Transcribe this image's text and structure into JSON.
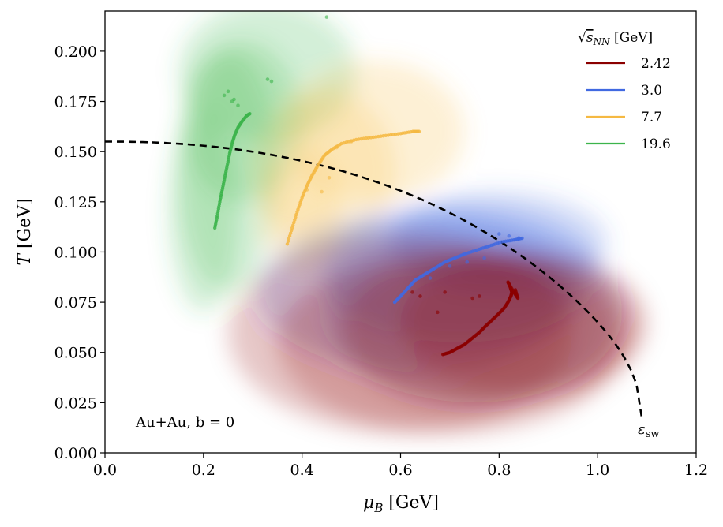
{
  "chart_data": {
    "type": "scatter",
    "xlabel": "μ_B [GeV]",
    "ylabel": "T [GeV]",
    "xlim": [
      0.0,
      1.2
    ],
    "ylim": [
      0.0,
      0.22
    ],
    "x_ticks": [
      "0.0",
      "0.2",
      "0.4",
      "0.6",
      "0.8",
      "1.0",
      "1.2"
    ],
    "y_ticks": [
      "0.000",
      "0.025",
      "0.050",
      "0.075",
      "0.100",
      "0.125",
      "0.150",
      "0.175",
      "0.200"
    ],
    "grid": false,
    "legend_title": "√s_NN [GeV]",
    "legend_position": "top-right",
    "annotation": "Au+Au, b = 0",
    "curve_label": "ε_sw",
    "series": [
      {
        "name": "2.42",
        "color": "#8b0000",
        "points": [
          [
            0.686,
            0.049
          ],
          [
            0.7,
            0.05
          ],
          [
            0.715,
            0.052
          ],
          [
            0.73,
            0.054
          ],
          [
            0.745,
            0.057
          ],
          [
            0.76,
            0.06
          ],
          [
            0.772,
            0.063
          ],
          [
            0.785,
            0.066
          ],
          [
            0.798,
            0.069
          ],
          [
            0.81,
            0.072
          ],
          [
            0.818,
            0.075
          ],
          [
            0.824,
            0.078
          ],
          [
            0.826,
            0.08
          ],
          [
            0.822,
            0.083
          ],
          [
            0.818,
            0.085
          ],
          [
            0.83,
            0.08
          ],
          [
            0.838,
            0.077
          ],
          [
            0.832,
            0.082
          ]
        ],
        "extra_points": [
          [
            0.76,
            0.078
          ],
          [
            0.746,
            0.077
          ],
          [
            0.69,
            0.08
          ],
          [
            0.624,
            0.08
          ],
          [
            0.64,
            0.078
          ],
          [
            0.675,
            0.07
          ]
        ],
        "blobs": [
          [
            0.85,
            0.065,
            0.25,
            0.035
          ],
          [
            0.78,
            0.062,
            0.3,
            0.04
          ],
          [
            0.7,
            0.055,
            0.35,
            0.045
          ],
          [
            0.6,
            0.06,
            0.35,
            0.05
          ]
        ]
      },
      {
        "name": "3.0",
        "color": "#4169e1",
        "points": [
          [
            0.588,
            0.075
          ],
          [
            0.6,
            0.078
          ],
          [
            0.615,
            0.082
          ],
          [
            0.63,
            0.086
          ],
          [
            0.65,
            0.089
          ],
          [
            0.67,
            0.092
          ],
          [
            0.69,
            0.095
          ],
          [
            0.71,
            0.097
          ],
          [
            0.73,
            0.099
          ],
          [
            0.755,
            0.101
          ],
          [
            0.78,
            0.103
          ],
          [
            0.805,
            0.105
          ],
          [
            0.83,
            0.106
          ],
          [
            0.85,
            0.107
          ]
        ],
        "extra_points": [
          [
            0.66,
            0.087
          ],
          [
            0.7,
            0.093
          ],
          [
            0.735,
            0.095
          ],
          [
            0.77,
            0.097
          ],
          [
            0.8,
            0.109
          ],
          [
            0.82,
            0.108
          ],
          [
            0.84,
            0.107
          ]
        ],
        "blobs": [
          [
            0.8,
            0.105,
            0.22,
            0.025
          ],
          [
            0.72,
            0.09,
            0.28,
            0.035
          ],
          [
            0.63,
            0.08,
            0.32,
            0.04
          ],
          [
            0.75,
            0.07,
            0.3,
            0.045
          ]
        ]
      },
      {
        "name": "7.7",
        "color": "#f5b942",
        "points": [
          [
            0.37,
            0.104
          ],
          [
            0.38,
            0.112
          ],
          [
            0.39,
            0.12
          ],
          [
            0.4,
            0.127
          ],
          [
            0.41,
            0.133
          ],
          [
            0.42,
            0.138
          ],
          [
            0.432,
            0.143
          ],
          [
            0.445,
            0.148
          ],
          [
            0.46,
            0.151
          ],
          [
            0.48,
            0.154
          ],
          [
            0.51,
            0.156
          ],
          [
            0.54,
            0.157
          ],
          [
            0.57,
            0.158
          ],
          [
            0.6,
            0.159
          ],
          [
            0.625,
            0.16
          ],
          [
            0.64,
            0.16
          ]
        ],
        "extra_points": [
          [
            0.41,
            0.131
          ],
          [
            0.44,
            0.13
          ],
          [
            0.455,
            0.137
          ],
          [
            0.47,
            0.152
          ],
          [
            0.5,
            0.155
          ]
        ],
        "blobs": [
          [
            0.55,
            0.16,
            0.18,
            0.035
          ],
          [
            0.45,
            0.14,
            0.14,
            0.04
          ],
          [
            0.4,
            0.12,
            0.08,
            0.03
          ]
        ]
      },
      {
        "name": "19.6",
        "color": "#3cb44b",
        "points": [
          [
            0.223,
            0.112
          ],
          [
            0.228,
            0.118
          ],
          [
            0.233,
            0.125
          ],
          [
            0.238,
            0.131
          ],
          [
            0.243,
            0.137
          ],
          [
            0.248,
            0.143
          ],
          [
            0.253,
            0.149
          ],
          [
            0.258,
            0.154
          ],
          [
            0.263,
            0.158
          ],
          [
            0.27,
            0.162
          ],
          [
            0.278,
            0.165
          ],
          [
            0.288,
            0.168
          ],
          [
            0.295,
            0.169
          ]
        ],
        "extra_points": [
          [
            0.242,
            0.178
          ],
          [
            0.258,
            0.175
          ],
          [
            0.27,
            0.173
          ],
          [
            0.25,
            0.18
          ],
          [
            0.262,
            0.176
          ],
          [
            0.33,
            0.186
          ],
          [
            0.338,
            0.185
          ],
          [
            0.45,
            0.217
          ]
        ],
        "blobs": [
          [
            0.28,
            0.165,
            0.12,
            0.04
          ],
          [
            0.25,
            0.14,
            0.1,
            0.06
          ],
          [
            0.2,
            0.12,
            0.07,
            0.05
          ],
          [
            0.33,
            0.19,
            0.18,
            0.035
          ]
        ]
      }
    ],
    "switching_curve": {
      "mu_end": 1.09,
      "T0": 0.155
    }
  }
}
